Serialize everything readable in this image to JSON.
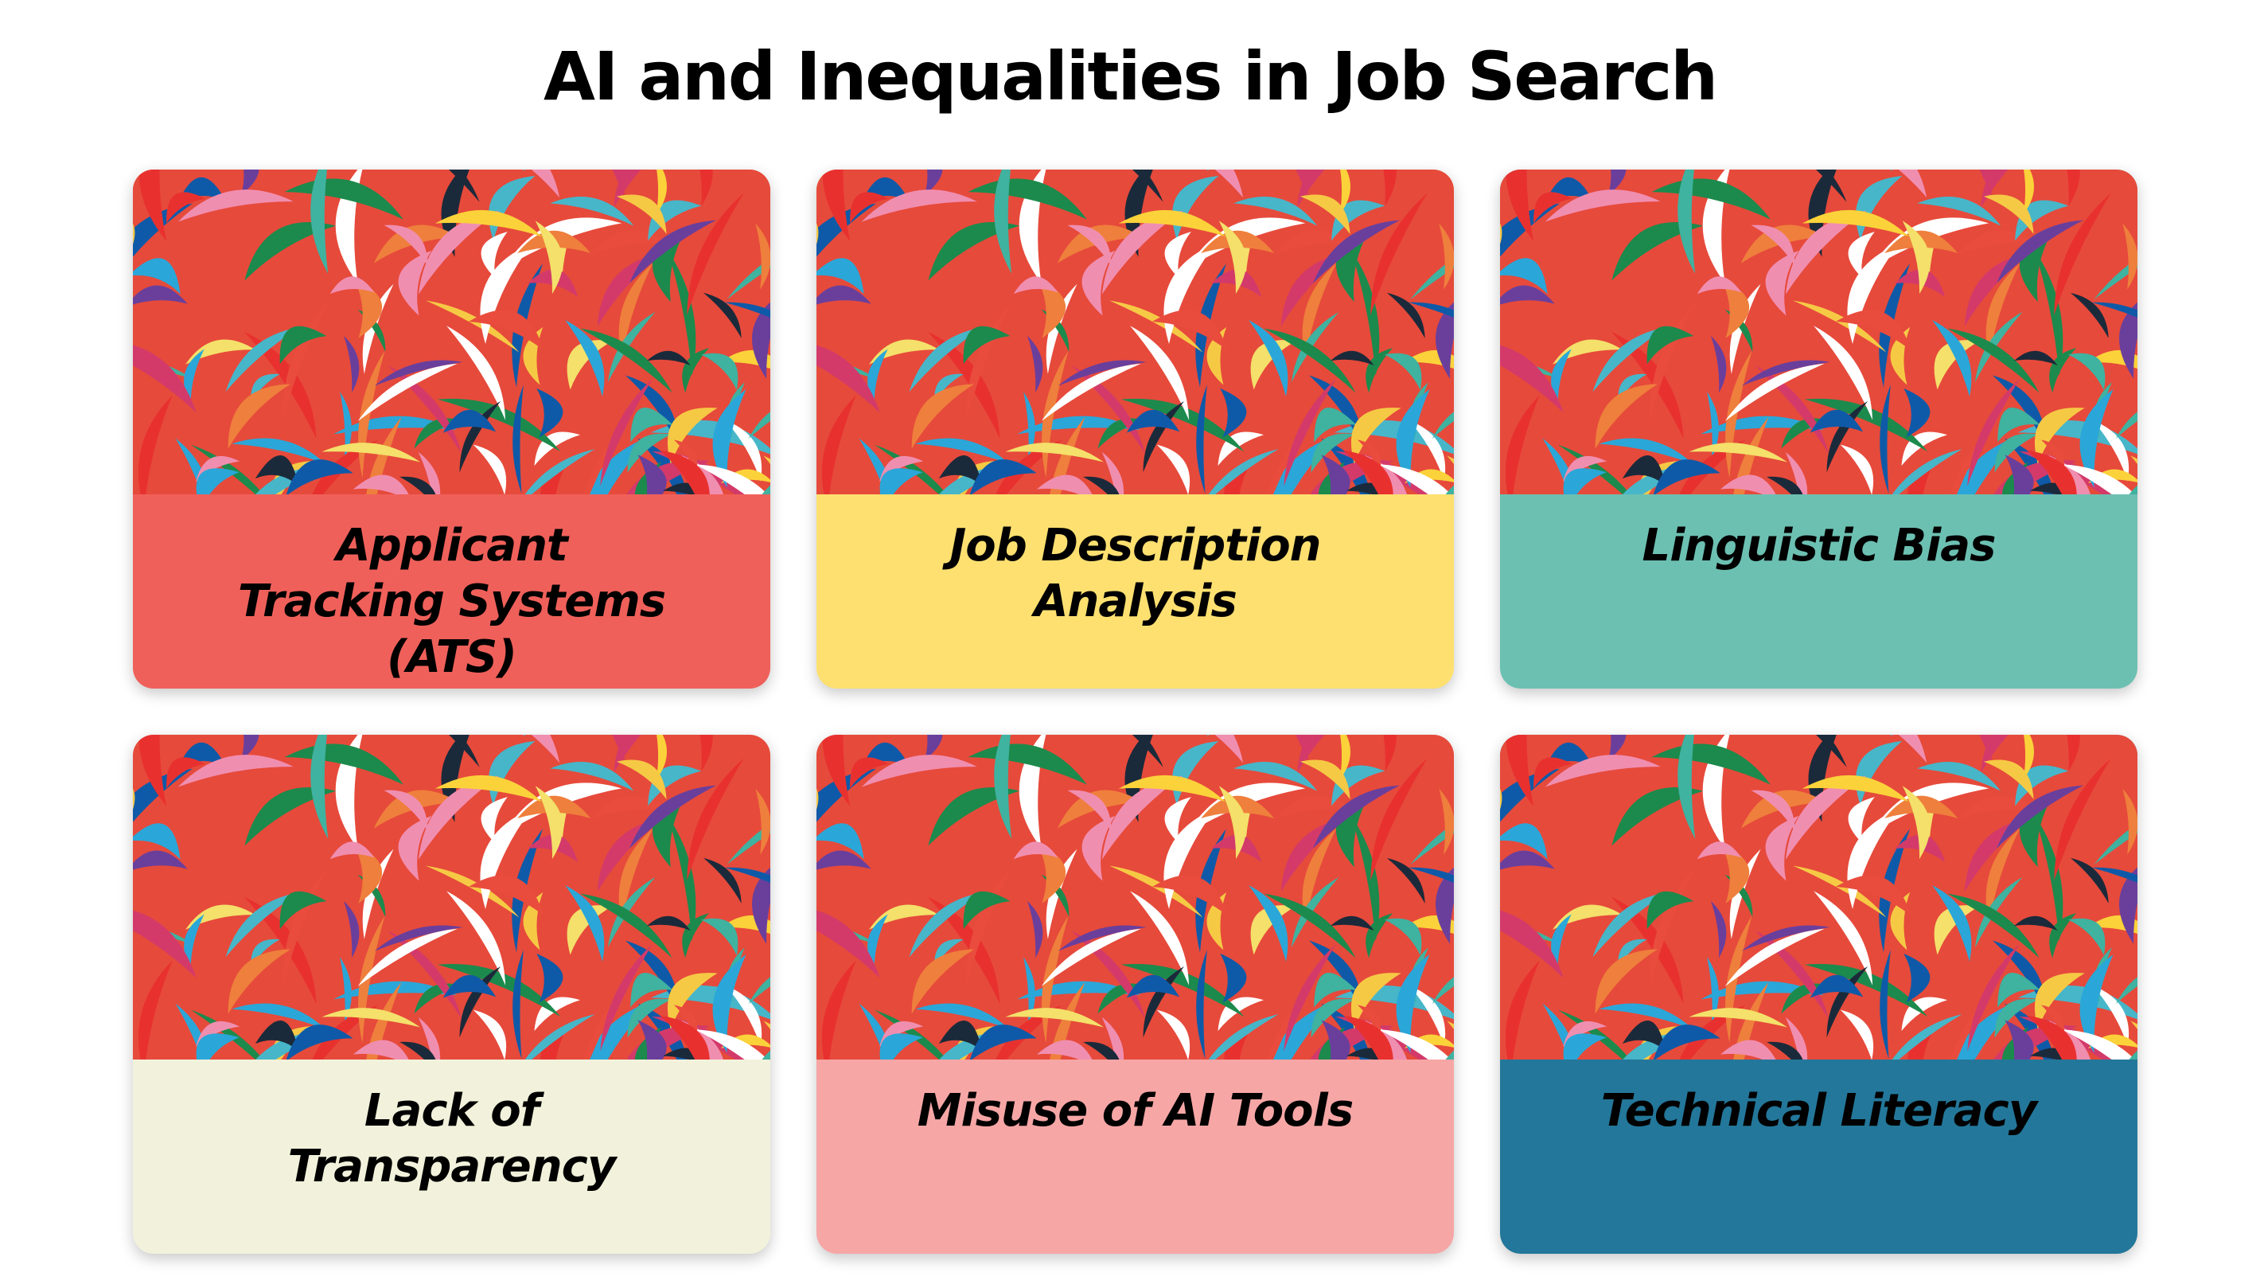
{
  "page": {
    "title": "AI and Inequalities in Job Search"
  },
  "cards": [
    {
      "title": "Applicant Tracking Systems (ATS)",
      "color": "#f0605a"
    },
    {
      "title": "Job Description Analysis",
      "color": "#fde070"
    },
    {
      "title": "Linguistic Bias",
      "color": "#6cc0b2"
    },
    {
      "title": "Lack of Transparency",
      "color": "#f2f2dc"
    },
    {
      "title": "Misuse of AI Tools",
      "color": "#f7a6a6"
    },
    {
      "title": "Technical Literacy",
      "color": "#23779a"
    }
  ]
}
